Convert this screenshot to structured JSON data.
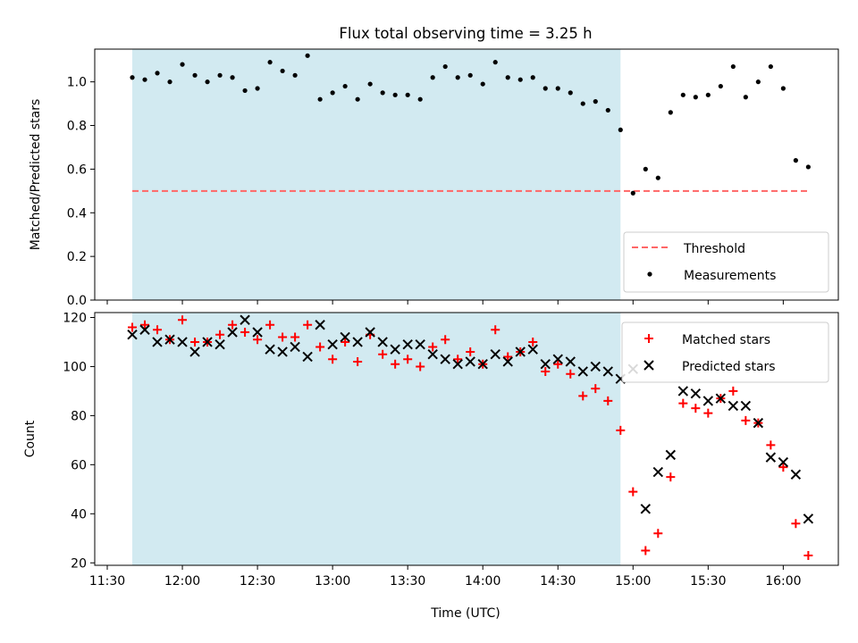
{
  "figure": {
    "title": "Flux total observing time = 3.25 h",
    "xlabel": "Time (UTC)",
    "x_ticks": [
      "11:30",
      "12:00",
      "12:30",
      "13:00",
      "13:30",
      "14:00",
      "14:30",
      "15:00",
      "15:30",
      "16:00"
    ],
    "shaded_region": {
      "start": "11:40",
      "end": "14:55",
      "color": "#add8e6"
    }
  },
  "chart_data": [
    {
      "type": "scatter",
      "ylabel": "Matched/Predicted stars",
      "ylim": [
        0,
        1.15
      ],
      "y_ticks": [
        "0.0",
        "0.2",
        "0.4",
        "0.6",
        "0.8",
        "1.0"
      ],
      "legend": {
        "position": "lower-right"
      },
      "threshold": {
        "name": "Threshold",
        "value": 0.5,
        "x_start": "11:40",
        "x_end": "16:10",
        "color": "#ff6666"
      },
      "series": [
        {
          "name": "Measurements",
          "color": "#000000",
          "x": [
            "11:40",
            "11:45",
            "11:50",
            "11:55",
            "12:00",
            "12:05",
            "12:10",
            "12:15",
            "12:20",
            "12:25",
            "12:30",
            "12:35",
            "12:40",
            "12:45",
            "12:50",
            "12:55",
            "13:00",
            "13:05",
            "13:10",
            "13:15",
            "13:20",
            "13:25",
            "13:30",
            "13:35",
            "13:40",
            "13:45",
            "13:50",
            "13:55",
            "14:00",
            "14:05",
            "14:10",
            "14:15",
            "14:20",
            "14:25",
            "14:30",
            "14:35",
            "14:40",
            "14:45",
            "14:50",
            "14:55",
            "15:00",
            "15:05",
            "15:10",
            "15:15",
            "15:20",
            "15:25",
            "15:30",
            "15:35",
            "15:40",
            "15:45",
            "15:50",
            "15:55",
            "16:00",
            "16:05",
            "16:10"
          ],
          "y": [
            1.02,
            1.01,
            1.04,
            1.0,
            1.08,
            1.03,
            1.0,
            1.03,
            1.02,
            0.96,
            0.97,
            1.09,
            1.05,
            1.03,
            1.12,
            0.92,
            0.95,
            0.98,
            0.92,
            0.99,
            0.95,
            0.94,
            0.94,
            0.92,
            1.02,
            1.07,
            1.02,
            1.03,
            0.99,
            1.09,
            1.02,
            1.01,
            1.02,
            0.97,
            0.97,
            0.95,
            0.9,
            0.91,
            0.87,
            0.78,
            0.49,
            0.6,
            0.56,
            0.86,
            0.94,
            0.93,
            0.94,
            0.98,
            1.07,
            0.93,
            1.0,
            1.07,
            0.97,
            0.64,
            0.61
          ]
        }
      ]
    },
    {
      "type": "scatter",
      "ylabel": "Count",
      "ylim": [
        19,
        122
      ],
      "y_ticks": [
        "20",
        "40",
        "60",
        "80",
        "100",
        "120"
      ],
      "legend": {
        "position": "top-right"
      },
      "series": [
        {
          "name": "Matched stars",
          "marker": "+",
          "color": "#ff0000",
          "x": [
            "11:40",
            "11:45",
            "11:50",
            "11:55",
            "12:00",
            "12:05",
            "12:10",
            "12:15",
            "12:20",
            "12:25",
            "12:30",
            "12:35",
            "12:40",
            "12:45",
            "12:50",
            "12:55",
            "13:00",
            "13:05",
            "13:10",
            "13:15",
            "13:20",
            "13:25",
            "13:30",
            "13:35",
            "13:40",
            "13:45",
            "13:50",
            "13:55",
            "14:00",
            "14:05",
            "14:10",
            "14:15",
            "14:20",
            "14:25",
            "14:30",
            "14:35",
            "14:40",
            "14:45",
            "14:50",
            "14:55",
            "15:00",
            "15:05",
            "15:10",
            "15:15",
            "15:20",
            "15:25",
            "15:30",
            "15:35",
            "15:40",
            "15:45",
            "15:50",
            "15:55",
            "16:00",
            "16:05",
            "16:10"
          ],
          "y": [
            116,
            117,
            115,
            111,
            119,
            110,
            110,
            113,
            117,
            114,
            111,
            117,
            112,
            112,
            117,
            108,
            103,
            110,
            102,
            113,
            105,
            101,
            103,
            100,
            108,
            111,
            103,
            106,
            101,
            115,
            104,
            106,
            110,
            98,
            101,
            97,
            88,
            91,
            86,
            74,
            49,
            25,
            32,
            55,
            85,
            83,
            81,
            87,
            90,
            78,
            77,
            68,
            59,
            36,
            23
          ]
        },
        {
          "name": "Predicted stars",
          "marker": "x",
          "color": "#000000",
          "x": [
            "11:40",
            "11:45",
            "11:50",
            "11:55",
            "12:00",
            "12:05",
            "12:10",
            "12:15",
            "12:20",
            "12:25",
            "12:30",
            "12:35",
            "12:40",
            "12:45",
            "12:50",
            "12:55",
            "13:00",
            "13:05",
            "13:10",
            "13:15",
            "13:20",
            "13:25",
            "13:30",
            "13:35",
            "13:40",
            "13:45",
            "13:50",
            "13:55",
            "14:00",
            "14:05",
            "14:10",
            "14:15",
            "14:20",
            "14:25",
            "14:30",
            "14:35",
            "14:40",
            "14:45",
            "14:50",
            "14:55",
            "15:00",
            "15:05",
            "15:10",
            "15:15",
            "15:20",
            "15:25",
            "15:30",
            "15:35",
            "15:40",
            "15:45",
            "15:50",
            "15:55",
            "16:00",
            "16:05",
            "16:10"
          ],
          "y": [
            113,
            115,
            110,
            111,
            110,
            106,
            110,
            109,
            114,
            119,
            114,
            107,
            106,
            108,
            104,
            117,
            109,
            112,
            110,
            114,
            110,
            107,
            109,
            109,
            105,
            103,
            101,
            102,
            101,
            105,
            102,
            106,
            107,
            101,
            103,
            102,
            98,
            100,
            98,
            95,
            99,
            42,
            57,
            64,
            90,
            89,
            86,
            87,
            84,
            84,
            77,
            63,
            61,
            56,
            38
          ]
        }
      ]
    }
  ]
}
